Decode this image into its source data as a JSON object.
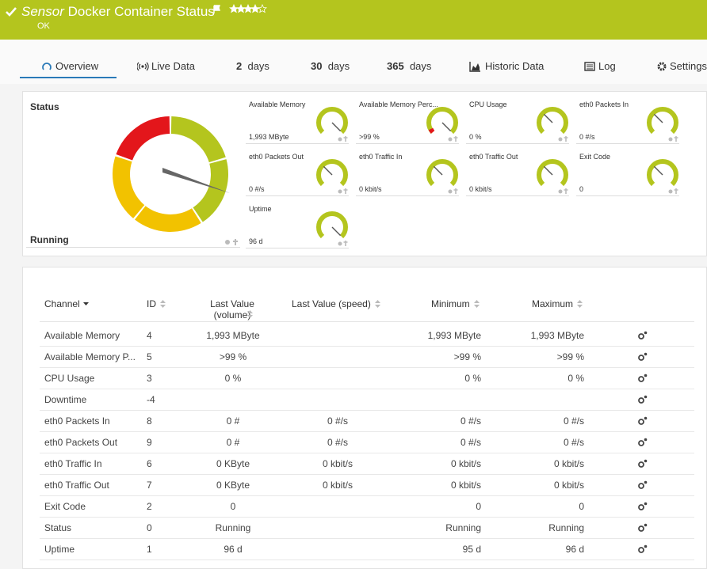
{
  "header": {
    "title_prefix": "Sensor",
    "title": "Docker Container Status",
    "status": "OK"
  },
  "tabs": [
    {
      "label": "Overview"
    },
    {
      "label": "Live Data"
    },
    {
      "number": "2",
      "unit": "days"
    },
    {
      "number": "30",
      "unit": "days"
    },
    {
      "number": "365",
      "unit": "days"
    },
    {
      "label": "Historic Data"
    },
    {
      "label": "Log"
    },
    {
      "label": "Settings"
    }
  ],
  "status_panel": {
    "label": "Status",
    "value": "Running"
  },
  "gauges": [
    {
      "name": "Available Memory",
      "value": "1,993 MByte"
    },
    {
      "name": "Available Memory Perc...",
      "value": ">99 %"
    },
    {
      "name": "CPU Usage",
      "value": "0 %"
    },
    {
      "name": "eth0 Packets In",
      "value": "0 #/s"
    },
    {
      "name": "eth0 Packets Out",
      "value": "0 #/s"
    },
    {
      "name": "eth0 Traffic In",
      "value": "0 kbit/s"
    },
    {
      "name": "eth0 Traffic Out",
      "value": "0 kbit/s"
    },
    {
      "name": "Exit Code",
      "value": "0"
    },
    {
      "name": "Uptime",
      "value": "96 d"
    }
  ],
  "table": {
    "headers": [
      "Channel",
      "ID",
      "Last Value (volume)",
      "Last Value (speed)",
      "Minimum",
      "Maximum"
    ],
    "rows": [
      [
        "Available Memory",
        "4",
        "1,993 MByte",
        null,
        "1,993 MByte",
        "1,993 MByte"
      ],
      [
        "Available Memory P...",
        "5",
        ">99 %",
        null,
        ">99 %",
        ">99 %"
      ],
      [
        "CPU Usage",
        "3",
        "0 %",
        null,
        "0 %",
        "0 %"
      ],
      [
        "Downtime",
        "-4",
        null,
        null,
        null,
        null
      ],
      [
        "eth0 Packets In",
        "8",
        "0 #",
        "0 #/s",
        "0 #/s",
        "0 #/s"
      ],
      [
        "eth0 Packets Out",
        "9",
        "0 #",
        "0 #/s",
        "0 #/s",
        "0 #/s"
      ],
      [
        "eth0 Traffic In",
        "6",
        "0 KByte",
        "0 kbit/s",
        "0 kbit/s",
        "0 kbit/s"
      ],
      [
        "eth0 Traffic Out",
        "7",
        "0 KByte",
        "0 kbit/s",
        "0 kbit/s",
        "0 kbit/s"
      ],
      [
        "Exit Code",
        "2",
        "0",
        null,
        "0",
        "0"
      ],
      [
        "Status",
        "0",
        "Running",
        null,
        "Running",
        "Running"
      ],
      [
        "Uptime",
        "1",
        "96 d",
        null,
        "95 d",
        "96 d"
      ]
    ]
  }
}
